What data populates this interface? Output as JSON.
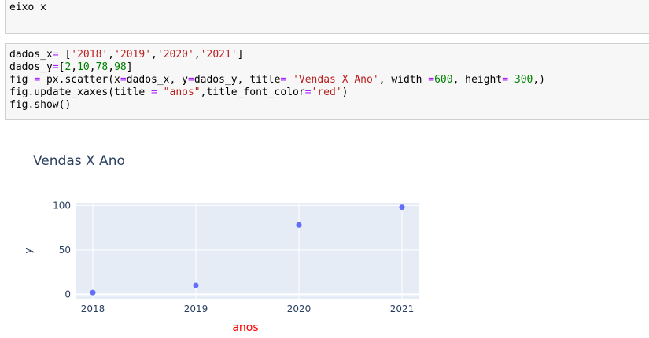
{
  "markdown_cell": {
    "text": "eixo x"
  },
  "code_cell": {
    "line1": {
      "var": "dados_x",
      "op": "=",
      "s1": "'2018'",
      "s2": "'2019'",
      "s3": "'2020'",
      "s4": "'2021'"
    },
    "line2": {
      "var": "dados_y",
      "op": "=",
      "n1": "2",
      "n2": "10",
      "n3": "78",
      "n4": "98"
    },
    "line3": {
      "var": "fig",
      "op": "=",
      "call": "px.scatter(x",
      "arg_x": "dados_x",
      "arg_y_name": "y",
      "arg_y": "dados_y",
      "title_kw": "title",
      "title_val": "'Vendas X Ano'",
      "width_kw": "width",
      "width_val": "600",
      "height_kw": "height",
      "height_val": "300"
    },
    "line4": {
      "call": "fig.update_xaxes(title",
      "title_val": "\"anos\"",
      "color_kw": "title_font_color",
      "color_val": "'red'"
    },
    "line5": {
      "text": "fig.show()"
    }
  },
  "colors": {
    "marker": "#636efa",
    "plot_bg": "#e5ecf6",
    "axis_title_x": "#ff0000",
    "text": "#2a3f5f"
  },
  "chart_data": {
    "type": "scatter",
    "title": "Vendas X Ano",
    "xlabel": "anos",
    "ylabel": "y",
    "categories": [
      "2018",
      "2019",
      "2020",
      "2021"
    ],
    "values": [
      2,
      10,
      78,
      98
    ],
    "ylim": [
      -5,
      103
    ],
    "yticks": [
      0,
      50,
      100
    ],
    "ytick_labels": [
      "0",
      "50",
      "100"
    ],
    "grid": true
  }
}
